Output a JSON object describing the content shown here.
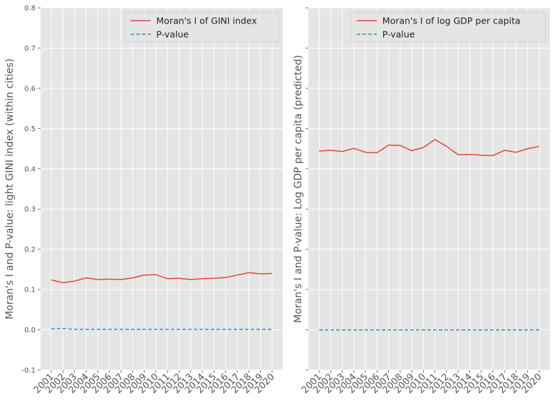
{
  "chart_data": [
    {
      "type": "line",
      "ylabel": "Moran's I and P-value: light GINI index (within cities)",
      "xlabel": "",
      "ylim": [
        -0.1,
        0.8
      ],
      "yticks": [
        "-0.1",
        "0.0",
        "0.1",
        "0.2",
        "0.3",
        "0.4",
        "0.5",
        "0.6",
        "0.7",
        "0.8"
      ],
      "categories": [
        "2001",
        "2002",
        "2003",
        "2004",
        "2005",
        "2006",
        "2007",
        "2008",
        "2009",
        "2010",
        "2011",
        "2012",
        "2013",
        "2014",
        "2015",
        "2016",
        "2017",
        "2018",
        "2019",
        "2020"
      ],
      "grid": true,
      "legend_position": "top-right",
      "series": [
        {
          "name": "Moran's I of GINI index",
          "style": "solid",
          "color": "#E24A33",
          "values": [
            0.124,
            0.117,
            0.121,
            0.129,
            0.125,
            0.126,
            0.125,
            0.129,
            0.136,
            0.137,
            0.127,
            0.128,
            0.125,
            0.127,
            0.128,
            0.13,
            0.136,
            0.142,
            0.139,
            0.14
          ]
        },
        {
          "name": "P-value",
          "style": "dashed",
          "color": "#348ABD",
          "values": [
            0.002,
            0.003,
            0.001,
            0.001,
            0.001,
            0.001,
            0.001,
            0.001,
            0.001,
            0.001,
            0.001,
            0.001,
            0.001,
            0.001,
            0.001,
            0.001,
            0.001,
            0.001,
            0.001,
            0.001
          ]
        }
      ]
    },
    {
      "type": "line",
      "ylabel": "Moran's I and P-value: Log GDP per capita (predicted)",
      "xlabel": "",
      "ylim": [
        -0.1,
        0.8
      ],
      "shared_y": true,
      "categories": [
        "2001",
        "2002",
        "2003",
        "2004",
        "2005",
        "2006",
        "2007",
        "2008",
        "2009",
        "2010",
        "2011",
        "2012",
        "2013",
        "2014",
        "2015",
        "2016",
        "2017",
        "2018",
        "2019",
        "2020"
      ],
      "grid": true,
      "legend_position": "top-right",
      "series": [
        {
          "name": "Moran's I of log GDP per capita",
          "style": "solid",
          "color": "#E24A33",
          "values": [
            0.444,
            0.446,
            0.443,
            0.451,
            0.441,
            0.44,
            0.459,
            0.458,
            0.445,
            0.453,
            0.473,
            0.456,
            0.435,
            0.436,
            0.434,
            0.433,
            0.446,
            0.441,
            0.45,
            0.456
          ]
        },
        {
          "name": "P-value",
          "style": "dashed",
          "color": "#348ABD",
          "values": [
            0.0,
            0.0,
            0.0,
            0.0,
            0.0,
            0.0,
            0.0,
            0.0,
            0.0,
            0.0,
            0.0,
            0.0,
            0.0,
            0.0,
            0.0,
            0.0,
            0.0,
            0.0,
            0.0,
            0.0
          ]
        }
      ]
    }
  ]
}
